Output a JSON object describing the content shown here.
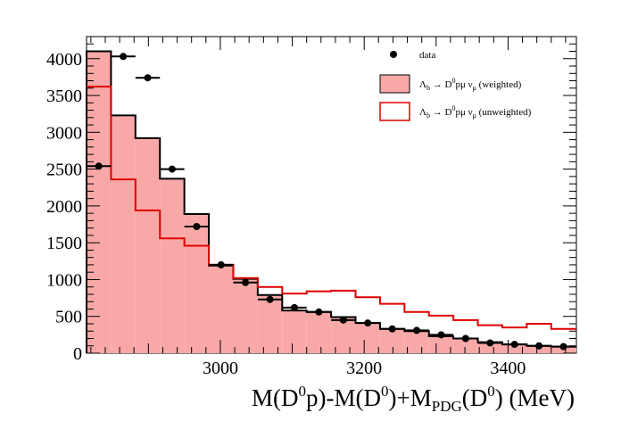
{
  "chart_data": {
    "type": "histogram",
    "xlabel_parts": {
      "m1": "M(D",
      "sup1": "0",
      "m2": "p)-M(D",
      "sup2": "0",
      "m3": ")+M",
      "sub": "PDG",
      "m4": "(D",
      "sup3": "0",
      "m5": ") (MeV)"
    },
    "ylabel": "",
    "xlim": [
      2814,
      3495
    ],
    "ylim": [
      0,
      4300
    ],
    "x_ticks": [
      3000,
      3200,
      3400
    ],
    "y_ticks": [
      0,
      500,
      1000,
      1500,
      2000,
      2500,
      3000,
      3500,
      4000
    ],
    "bin_edges": [
      2814,
      2848,
      2882,
      2916,
      2950,
      2984,
      3018,
      3052,
      3086,
      3120,
      3154,
      3188,
      3222,
      3256,
      3290,
      3324,
      3358,
      3392,
      3426,
      3460,
      3495
    ],
    "legend": {
      "data": "data",
      "weighted": {
        "lam": "Λ",
        "b": "b",
        "arrow": "→",
        "d": "D",
        "zero": "0",
        "p": "p",
        "mu": "μ",
        "nu": "ν",
        "sub_mu": "μ",
        "suffix": " (weighted)"
      },
      "unweighted": {
        "lam": "Λ",
        "b": "b",
        "arrow": "→",
        "d": "D",
        "zero": "0",
        "p": "p",
        "mu": "μ",
        "nu": "ν",
        "sub_mu": "μ",
        "suffix": " (unweighted)"
      },
      "placement": "top-right"
    },
    "series": [
      {
        "name": "data",
        "kind": "points",
        "x": [
          2831,
          2865,
          2899,
          2933,
          2967,
          3001,
          3035,
          3069,
          3103,
          3137,
          3171,
          3205,
          3239,
          3273,
          3307,
          3341,
          3375,
          3409,
          3443,
          3477
        ],
        "values": [
          2540,
          4030,
          3740,
          2500,
          1720,
          1200,
          960,
          730,
          620,
          560,
          450,
          410,
          330,
          310,
          250,
          200,
          140,
          120,
          100,
          90
        ]
      },
      {
        "name": "Λb → D0pμν̄μ (weighted)",
        "kind": "filled-step",
        "fill": "#f9a8a8",
        "stroke": "#000000",
        "values": [
          4100,
          3230,
          2920,
          2370,
          1890,
          1190,
          1010,
          790,
          580,
          560,
          490,
          410,
          330,
          300,
          230,
          200,
          150,
          120,
          100,
          90
        ]
      },
      {
        "name": "Λb → D0pμν̄μ (unweighted)",
        "kind": "step",
        "stroke": "#e00000",
        "values": [
          3620,
          2360,
          1940,
          1560,
          1460,
          1200,
          1020,
          900,
          810,
          840,
          850,
          760,
          670,
          560,
          510,
          450,
          380,
          350,
          400,
          330
        ]
      }
    ]
  },
  "colors": {
    "weighted_fill": "#f9a8a8",
    "unweighted_line": "#e00000",
    "axis": "#000000"
  }
}
